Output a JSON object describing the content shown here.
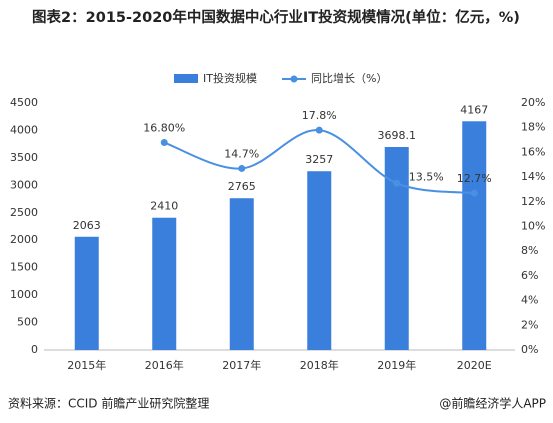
{
  "chart_data": {
    "type": "bar_line",
    "title": "图表2：2015-2020年中国数据中心行业IT投资规模情况(单位：亿元，%)",
    "categories": [
      "2015年",
      "2016年",
      "2017年",
      "2018年",
      "2019年",
      "2020E"
    ],
    "series": [
      {
        "name": "IT投资规模",
        "type": "bar",
        "color": "#3b7fdc",
        "values": [
          2063,
          2410,
          2765,
          3257,
          3698.1,
          4167
        ]
      },
      {
        "name": "同比增长（%）",
        "type": "line",
        "axis": "y2",
        "color": "#4a90e2",
        "values": [
          null,
          16.8,
          14.7,
          17.8,
          13.5,
          12.7
        ],
        "value_labels": [
          null,
          "16.80%",
          "14.7%",
          "17.8%",
          "13.5%",
          "12.7%"
        ]
      }
    ],
    "ylim": [
      0,
      4500
    ],
    "yticks": [
      0,
      500,
      1000,
      1500,
      2000,
      2500,
      3000,
      3500,
      4000,
      4500
    ],
    "y2lim": [
      0,
      20
    ],
    "y2ticks": [
      {
        "value": 0,
        "label": "0%"
      },
      {
        "value": 2,
        "label": "2%"
      },
      {
        "value": 4,
        "label": "4%"
      },
      {
        "value": 6,
        "label": "6%"
      },
      {
        "value": 8,
        "label": "8%"
      },
      {
        "value": 10,
        "label": "10%"
      },
      {
        "value": 12,
        "label": "12%"
      },
      {
        "value": 14,
        "label": "14%"
      },
      {
        "value": 16,
        "label": "16%"
      },
      {
        "value": 18,
        "label": "18%"
      },
      {
        "value": 20,
        "label": "20%"
      }
    ],
    "legend": "top",
    "source": "资料来源：CCID 前瞻产业研究院整理",
    "credit": "@前瞻经济学人APP"
  }
}
